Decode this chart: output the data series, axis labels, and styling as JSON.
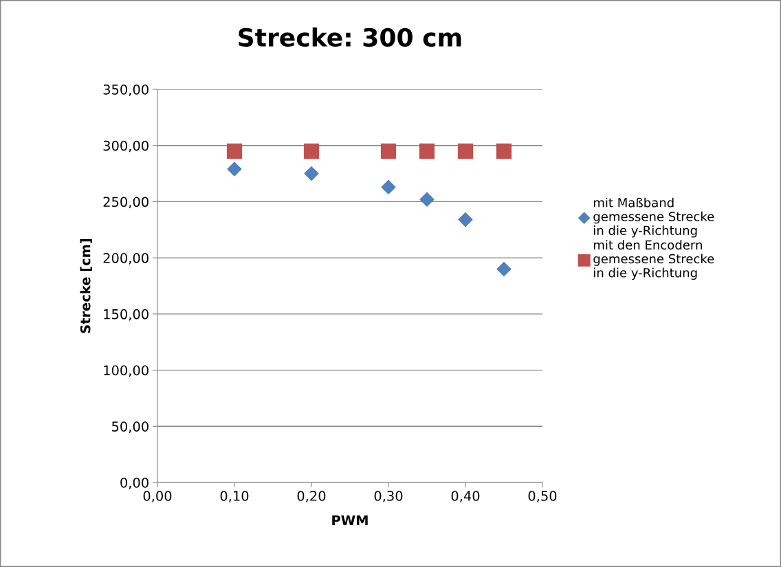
{
  "chart_data": {
    "type": "scatter",
    "title": "Strecke: 300 cm",
    "xlabel": "PWM",
    "ylabel": "Strecke [cm]",
    "x": [
      0.1,
      0.2,
      0.3,
      0.35,
      0.4,
      0.45
    ],
    "series": [
      {
        "name": "mit Maßband gemessene Strecke in die y-Richtung",
        "color": "#4f81bd",
        "marker": "diamond",
        "values": [
          279,
          275,
          263,
          252,
          234,
          190
        ]
      },
      {
        "name": "mit den Encodern gemessene Strecke in die y-Richtung",
        "color": "#c0504d",
        "marker": "square",
        "values": [
          295,
          295,
          295,
          295,
          295,
          295
        ]
      }
    ],
    "xlim": [
      0,
      0.5
    ],
    "xticks": [
      {
        "value": 0,
        "label": "0,00"
      },
      {
        "value": 0.1,
        "label": "0,10"
      },
      {
        "value": 0.2,
        "label": "0,20"
      },
      {
        "value": 0.3,
        "label": "0,30"
      },
      {
        "value": 0.4,
        "label": "0,40"
      },
      {
        "value": 0.5,
        "label": "0,50"
      }
    ],
    "ylim": [
      0,
      350
    ],
    "yticks": [
      {
        "value": 0,
        "label": "0,00"
      },
      {
        "value": 50,
        "label": "50,00"
      },
      {
        "value": 100,
        "label": "100,00"
      },
      {
        "value": 150,
        "label": "150,00"
      },
      {
        "value": 200,
        "label": "200,00"
      },
      {
        "value": 250,
        "label": "250,00"
      },
      {
        "value": 300,
        "label": "300,00"
      },
      {
        "value": 350,
        "label": "350,00"
      }
    ],
    "grid": "y",
    "legend": "right"
  }
}
